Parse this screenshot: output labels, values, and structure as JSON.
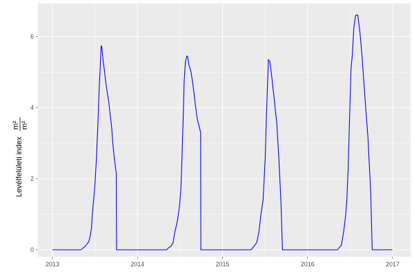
{
  "chart_data": {
    "type": "line",
    "title": "",
    "xlabel": "",
    "ylabel": {
      "text": "Levélfelületi index",
      "unit_numerator": "m²",
      "unit_denominator": "m²"
    },
    "x_ticks": [
      "2013",
      "2014",
      "2015",
      "2016",
      "2017"
    ],
    "y_ticks": [
      "0",
      "2",
      "4",
      "6"
    ],
    "xlim": [
      "2012-10-20",
      "2017-03-12"
    ],
    "ylim": [
      -0.3,
      6.9
    ],
    "grid": true,
    "line_color": "#0000ff",
    "points": [
      [
        "2013-01-01",
        0
      ],
      [
        "2013-05-04",
        0
      ],
      [
        "2013-05-22",
        0.1
      ],
      [
        "2013-06-06",
        0.23
      ],
      [
        "2013-06-12",
        0.39
      ],
      [
        "2013-06-18",
        0.62
      ],
      [
        "2013-06-21",
        1.0
      ],
      [
        "2013-06-27",
        1.4
      ],
      [
        "2013-07-03",
        1.9
      ],
      [
        "2013-07-09",
        2.6
      ],
      [
        "2013-07-15",
        3.5
      ],
      [
        "2013-07-20",
        4.4
      ],
      [
        "2013-07-26",
        5.3
      ],
      [
        "2013-07-29",
        5.75
      ],
      [
        "2013-08-01",
        5.7
      ],
      [
        "2013-08-07",
        5.3
      ],
      [
        "2013-08-13",
        5.0
      ],
      [
        "2013-08-19",
        4.65
      ],
      [
        "2013-08-25",
        4.4
      ],
      [
        "2013-08-31",
        4.15
      ],
      [
        "2013-09-06",
        3.8
      ],
      [
        "2013-09-12",
        3.45
      ],
      [
        "2013-09-17",
        3.0
      ],
      [
        "2013-09-23",
        2.6
      ],
      [
        "2013-09-29",
        2.3
      ],
      [
        "2013-10-02",
        2.15
      ],
      [
        "2013-10-03",
        0
      ],
      [
        "2014-05-07",
        0
      ],
      [
        "2014-05-13",
        0.05
      ],
      [
        "2014-05-25",
        0.1
      ],
      [
        "2014-06-03",
        0.2
      ],
      [
        "2014-06-09",
        0.45
      ],
      [
        "2014-06-21",
        0.8
      ],
      [
        "2014-06-30",
        1.2
      ],
      [
        "2014-07-06",
        1.7
      ],
      [
        "2014-07-11",
        2.55
      ],
      [
        "2014-07-17",
        3.9
      ],
      [
        "2014-07-20",
        4.7
      ],
      [
        "2014-07-26",
        5.3
      ],
      [
        "2014-08-01",
        5.45
      ],
      [
        "2014-08-04",
        5.45
      ],
      [
        "2014-08-10",
        5.2
      ],
      [
        "2014-08-19",
        5.0
      ],
      [
        "2014-08-28",
        4.6
      ],
      [
        "2014-09-06",
        4.1
      ],
      [
        "2014-09-14",
        3.7
      ],
      [
        "2014-09-29",
        3.3
      ],
      [
        "2014-09-30",
        0
      ],
      [
        "2015-05-04",
        0
      ],
      [
        "2015-05-10",
        0.05
      ],
      [
        "2015-05-28",
        0.2
      ],
      [
        "2015-06-06",
        0.5
      ],
      [
        "2015-06-15",
        1.0
      ],
      [
        "2015-06-24",
        1.4
      ],
      [
        "2015-07-03",
        2.55
      ],
      [
        "2015-07-08",
        3.7
      ],
      [
        "2015-07-17",
        5.35
      ],
      [
        "2015-07-23",
        5.3
      ],
      [
        "2015-07-29",
        5.0
      ],
      [
        "2015-08-10",
        4.3
      ],
      [
        "2015-08-22",
        3.55
      ],
      [
        "2015-08-31",
        2.55
      ],
      [
        "2015-09-09",
        1.3
      ],
      [
        "2015-09-15",
        0
      ],
      [
        "2016-05-10",
        0
      ],
      [
        "2016-05-13",
        0.04
      ],
      [
        "2016-05-25",
        0.12
      ],
      [
        "2016-06-03",
        0.45
      ],
      [
        "2016-06-12",
        0.9
      ],
      [
        "2016-06-18",
        1.4
      ],
      [
        "2016-06-24",
        2.35
      ],
      [
        "2016-06-30",
        3.75
      ],
      [
        "2016-07-06",
        5.1
      ],
      [
        "2016-07-12",
        5.5
      ],
      [
        "2016-07-18",
        6.25
      ],
      [
        "2016-07-26",
        6.6
      ],
      [
        "2016-08-04",
        6.6
      ],
      [
        "2016-08-13",
        6.15
      ],
      [
        "2016-08-22",
        5.5
      ],
      [
        "2016-09-06",
        4.1
      ],
      [
        "2016-09-17",
        3.15
      ],
      [
        "2016-09-29",
        1.6
      ],
      [
        "2016-10-05",
        0
      ],
      [
        "2016-12-31",
        0
      ]
    ]
  }
}
